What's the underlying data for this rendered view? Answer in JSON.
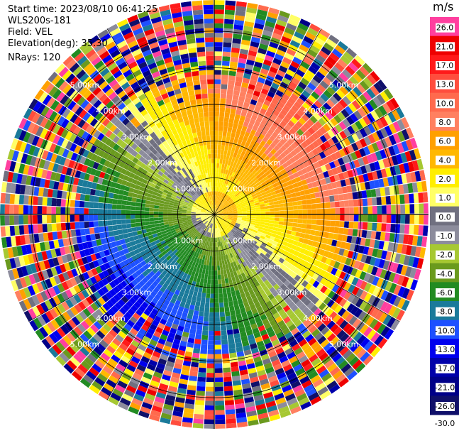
{
  "info": {
    "start_time": "Start time: 2023/08/10 06:41:25",
    "device": "WLS200s-181",
    "field": "Field: VEL",
    "elevation": "Elevation(deg): 35.30",
    "nrays": "NRays: 120"
  },
  "chart_data": {
    "type": "heatmap",
    "projection": "polar-ppi",
    "nrays": 120,
    "range_unit": "km",
    "max_range_km": 5.0,
    "range_rings_km": [
      1.0,
      2.0,
      3.0,
      4.0,
      5.0
    ],
    "ring_labels": [
      "1.00km",
      "2.00km",
      "3.00km",
      "4.00km",
      "5.00km"
    ],
    "colorbar": {
      "unit": "m/s",
      "tick_labels": [
        "26.0",
        "21.0",
        "17.0",
        "13.0",
        "10.0",
        "8.0",
        "6.0",
        "4.0",
        "2.0",
        "1.0",
        "0.0",
        "-1.0",
        "-2.0",
        "-4.0",
        "-6.0",
        "-8.0",
        "-10.0",
        "-13.0",
        "-17.0",
        "-21.0",
        "-26.0",
        "-30.0"
      ],
      "colors": [
        "#ff3f9f",
        "#ee0000",
        "#ff1a1a",
        "#ff4d3d",
        "#ff6a4d",
        "#ff8060",
        "#ffa000",
        "#ffb800",
        "#ffee00",
        "#ffff66",
        "#707080",
        "#8c8c9c",
        "#a6c832",
        "#6a9a1e",
        "#228b22",
        "#1a7a9a",
        "#1e50ff",
        "#0000ee",
        "#0000aa",
        "#000088",
        "#10106a"
      ]
    }
  }
}
